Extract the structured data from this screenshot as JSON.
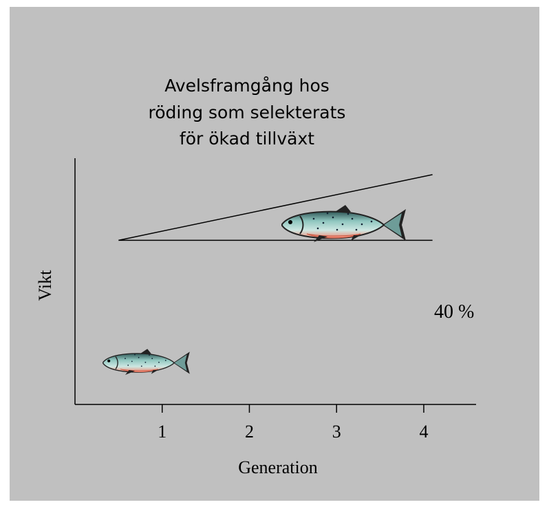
{
  "chart_data": {
    "type": "line",
    "title": [
      "Avelsframgång hos",
      "röding som selekterats",
      "för ökad tillväxt"
    ],
    "xlabel": "Generation",
    "ylabel": "Vikt",
    "x_ticks": [
      1,
      2,
      3,
      4
    ],
    "xlim": [
      0,
      4.6
    ],
    "ylim": [
      0,
      1.5
    ],
    "series": [
      {
        "values": [
          [
            0.5,
            1.0
          ],
          [
            4.1,
            1.4
          ]
        ]
      },
      {
        "values": [
          [
            0.5,
            1.0
          ],
          [
            4.1,
            1.0
          ]
        ]
      }
    ],
    "annotations": [
      {
        "text": "40 %"
      }
    ],
    "icons": [
      "small-fish-icon",
      "large-fish-icon"
    ],
    "colors": {
      "background": "#c0c0c0",
      "fish_body": "#8fc6bf",
      "fish_belly": "#f08c78",
      "fish_back": "#3e6a6a"
    }
  }
}
